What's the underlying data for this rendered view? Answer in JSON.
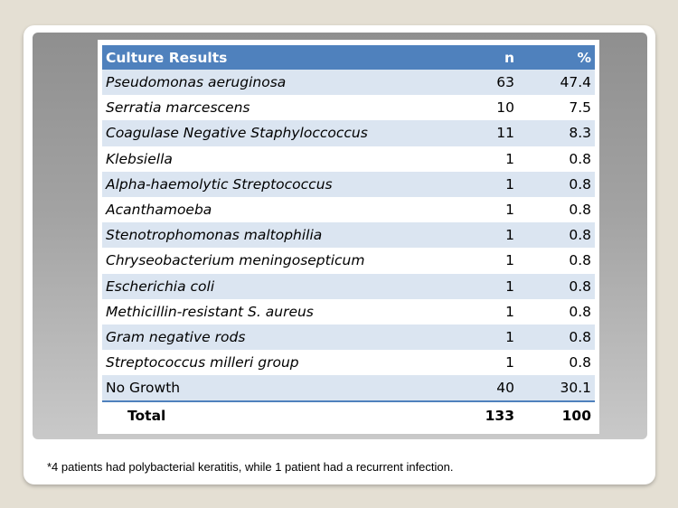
{
  "table": {
    "headers": [
      "Culture Results",
      "n",
      "%"
    ],
    "rows": [
      {
        "organism": "Pseudomonas aeruginosa",
        "n": "63",
        "pct": "47.4",
        "italic": true
      },
      {
        "organism": "Serratia marcescens",
        "n": "10",
        "pct": "7.5",
        "italic": true
      },
      {
        "organism": "Coagulase Negative Staphyloccoccus",
        "n": "11",
        "pct": "8.3",
        "italic": true
      },
      {
        "organism": "Klebsiella",
        "n": "1",
        "pct": "0.8",
        "italic": true
      },
      {
        "organism": "Alpha-haemolytic Streptococcus",
        "n": "1",
        "pct": "0.8",
        "italic": true
      },
      {
        "organism": "Acanthamoeba",
        "n": "1",
        "pct": "0.8",
        "italic": true
      },
      {
        "organism": "Stenotrophomonas maltophilia",
        "n": "1",
        "pct": "0.8",
        "italic": true
      },
      {
        "organism": "Chryseobacterium meningosepticum",
        "n": "1",
        "pct": "0.8",
        "italic": true
      },
      {
        "organism": "Escherichia coli",
        "n": "1",
        "pct": "0.8",
        "italic": true
      },
      {
        "organism": "Methicillin-resistant S. aureus",
        "n": "1",
        "pct": "0.8",
        "italic": true
      },
      {
        "organism": "Gram negative rods",
        "n": "1",
        "pct": "0.8",
        "italic": true
      },
      {
        "organism": "Streptococcus milleri group",
        "n": "1",
        "pct": "0.8",
        "italic": true
      },
      {
        "organism": "No Growth",
        "n": "40",
        "pct": "30.1",
        "italic": false
      }
    ],
    "total": {
      "label": "Total",
      "n": "133",
      "pct": "100"
    }
  },
  "footnote": "*4 patients had polybacterial keratitis, while 1 patient had a recurrent infection.",
  "colors": {
    "header": "#4f81bd",
    "band": "#dbe5f1",
    "panel": "#a3a3a3",
    "background": "#e4dfd3"
  }
}
